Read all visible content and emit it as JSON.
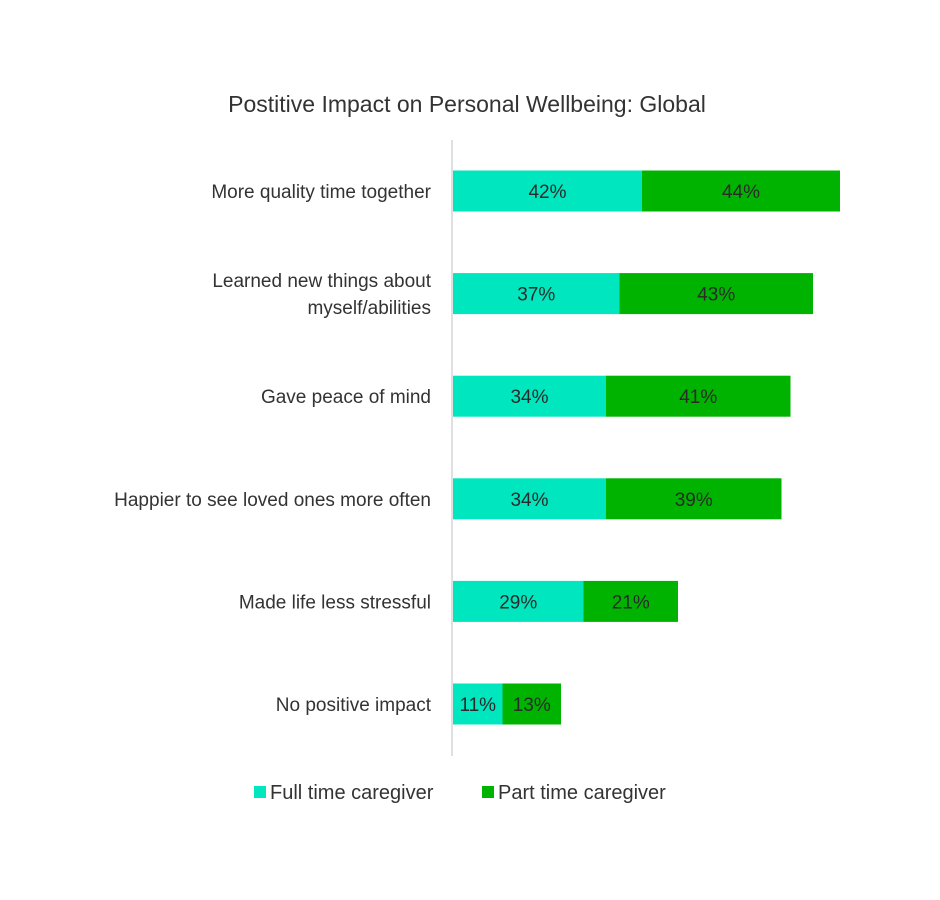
{
  "chart_data": {
    "type": "bar",
    "orientation": "horizontal",
    "stacked": true,
    "title": "Postitive Impact on Personal Wellbeing: Global",
    "categories": [
      [
        "More quality time together"
      ],
      [
        "Learned new things about",
        "myself/abilities"
      ],
      [
        "Gave peace of mind"
      ],
      [
        "Happier to see loved ones more often"
      ],
      [
        "Made life less stressful"
      ],
      [
        "No positive impact"
      ]
    ],
    "series": [
      {
        "name": "Full time caregiver",
        "color": "#00e6be",
        "values": [
          42,
          37,
          34,
          34,
          29,
          11
        ],
        "labels": [
          "42%",
          "37%",
          "34%",
          "34%",
          "29%",
          "11%"
        ]
      },
      {
        "name": "Part time caregiver",
        "color": "#00b300",
        "values": [
          44,
          43,
          41,
          39,
          21,
          13
        ],
        "labels": [
          "44%",
          "43%",
          "41%",
          "39%",
          "21%",
          "13%"
        ]
      }
    ],
    "legend_position": "bottom",
    "grid": false,
    "xlim": [
      0,
      100
    ]
  }
}
